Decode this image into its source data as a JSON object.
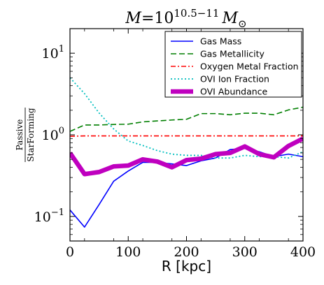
{
  "chart_data": {
    "type": "line",
    "title": {
      "mass_symbol": "M",
      "equals": "=",
      "base": "10",
      "exponent": "10.5−11",
      "unit": "M",
      "unit_subscript": "⊙"
    },
    "xlabel": "R [kpc]",
    "ylabel": {
      "numerator": "Passive",
      "denominator": "StarForming"
    },
    "xlim": [
      0,
      400
    ],
    "ylim": [
      0.05,
      20
    ],
    "yscale": "log",
    "grid": false,
    "legend_position": "top-right",
    "x_ticks": [
      {
        "value": 0,
        "label": "0"
      },
      {
        "value": 100,
        "label": "100"
      },
      {
        "value": 200,
        "label": "200"
      },
      {
        "value": 300,
        "label": "300"
      },
      {
        "value": 400,
        "label": "400"
      }
    ],
    "y_ticks": [
      {
        "value": 0.1,
        "base": "10",
        "exp": "−1"
      },
      {
        "value": 1,
        "base": "10",
        "exp": "0"
      },
      {
        "value": 10,
        "base": "10",
        "exp": "1"
      }
    ],
    "x": [
      0,
      25,
      50,
      75,
      100,
      125,
      150,
      175,
      200,
      225,
      250,
      275,
      300,
      325,
      350,
      375,
      400
    ],
    "series": [
      {
        "name": "Gas Mass",
        "color": "#0000ff",
        "style": "solid",
        "values": [
          0.12,
          0.074,
          0.14,
          0.27,
          0.36,
          0.46,
          0.46,
          0.44,
          0.42,
          0.48,
          0.52,
          0.66,
          0.68,
          0.62,
          0.54,
          0.58,
          0.54
        ]
      },
      {
        "name": "Gas Metallicity",
        "color": "#007f00",
        "style": "dashed",
        "values": [
          1.1,
          1.32,
          1.32,
          1.34,
          1.35,
          1.44,
          1.48,
          1.52,
          1.55,
          1.82,
          1.82,
          1.76,
          1.84,
          1.84,
          1.76,
          2.02,
          2.18
        ]
      },
      {
        "name": "Oxygen Metal Fraction",
        "color": "#ff0000",
        "style": "dashdot",
        "values": [
          0.96,
          0.97,
          0.97,
          0.97,
          0.97,
          0.97,
          0.97,
          0.97,
          0.97,
          0.97,
          0.97,
          0.97,
          0.97,
          0.97,
          0.97,
          0.97,
          0.97
        ]
      },
      {
        "name": "OVI Ion Fraction",
        "color": "#00bfbf",
        "style": "dotted",
        "values": [
          5.0,
          3.2,
          1.85,
          1.18,
          0.84,
          0.74,
          0.64,
          0.58,
          0.56,
          0.56,
          0.52,
          0.52,
          0.56,
          0.54,
          0.54,
          0.52,
          0.62
        ]
      },
      {
        "name": "OVI Abundance",
        "color": "#bf00bf",
        "style": "thick",
        "values": [
          0.6,
          0.33,
          0.35,
          0.41,
          0.42,
          0.5,
          0.47,
          0.4,
          0.49,
          0.51,
          0.58,
          0.6,
          0.72,
          0.58,
          0.53,
          0.73,
          0.9
        ]
      }
    ]
  }
}
